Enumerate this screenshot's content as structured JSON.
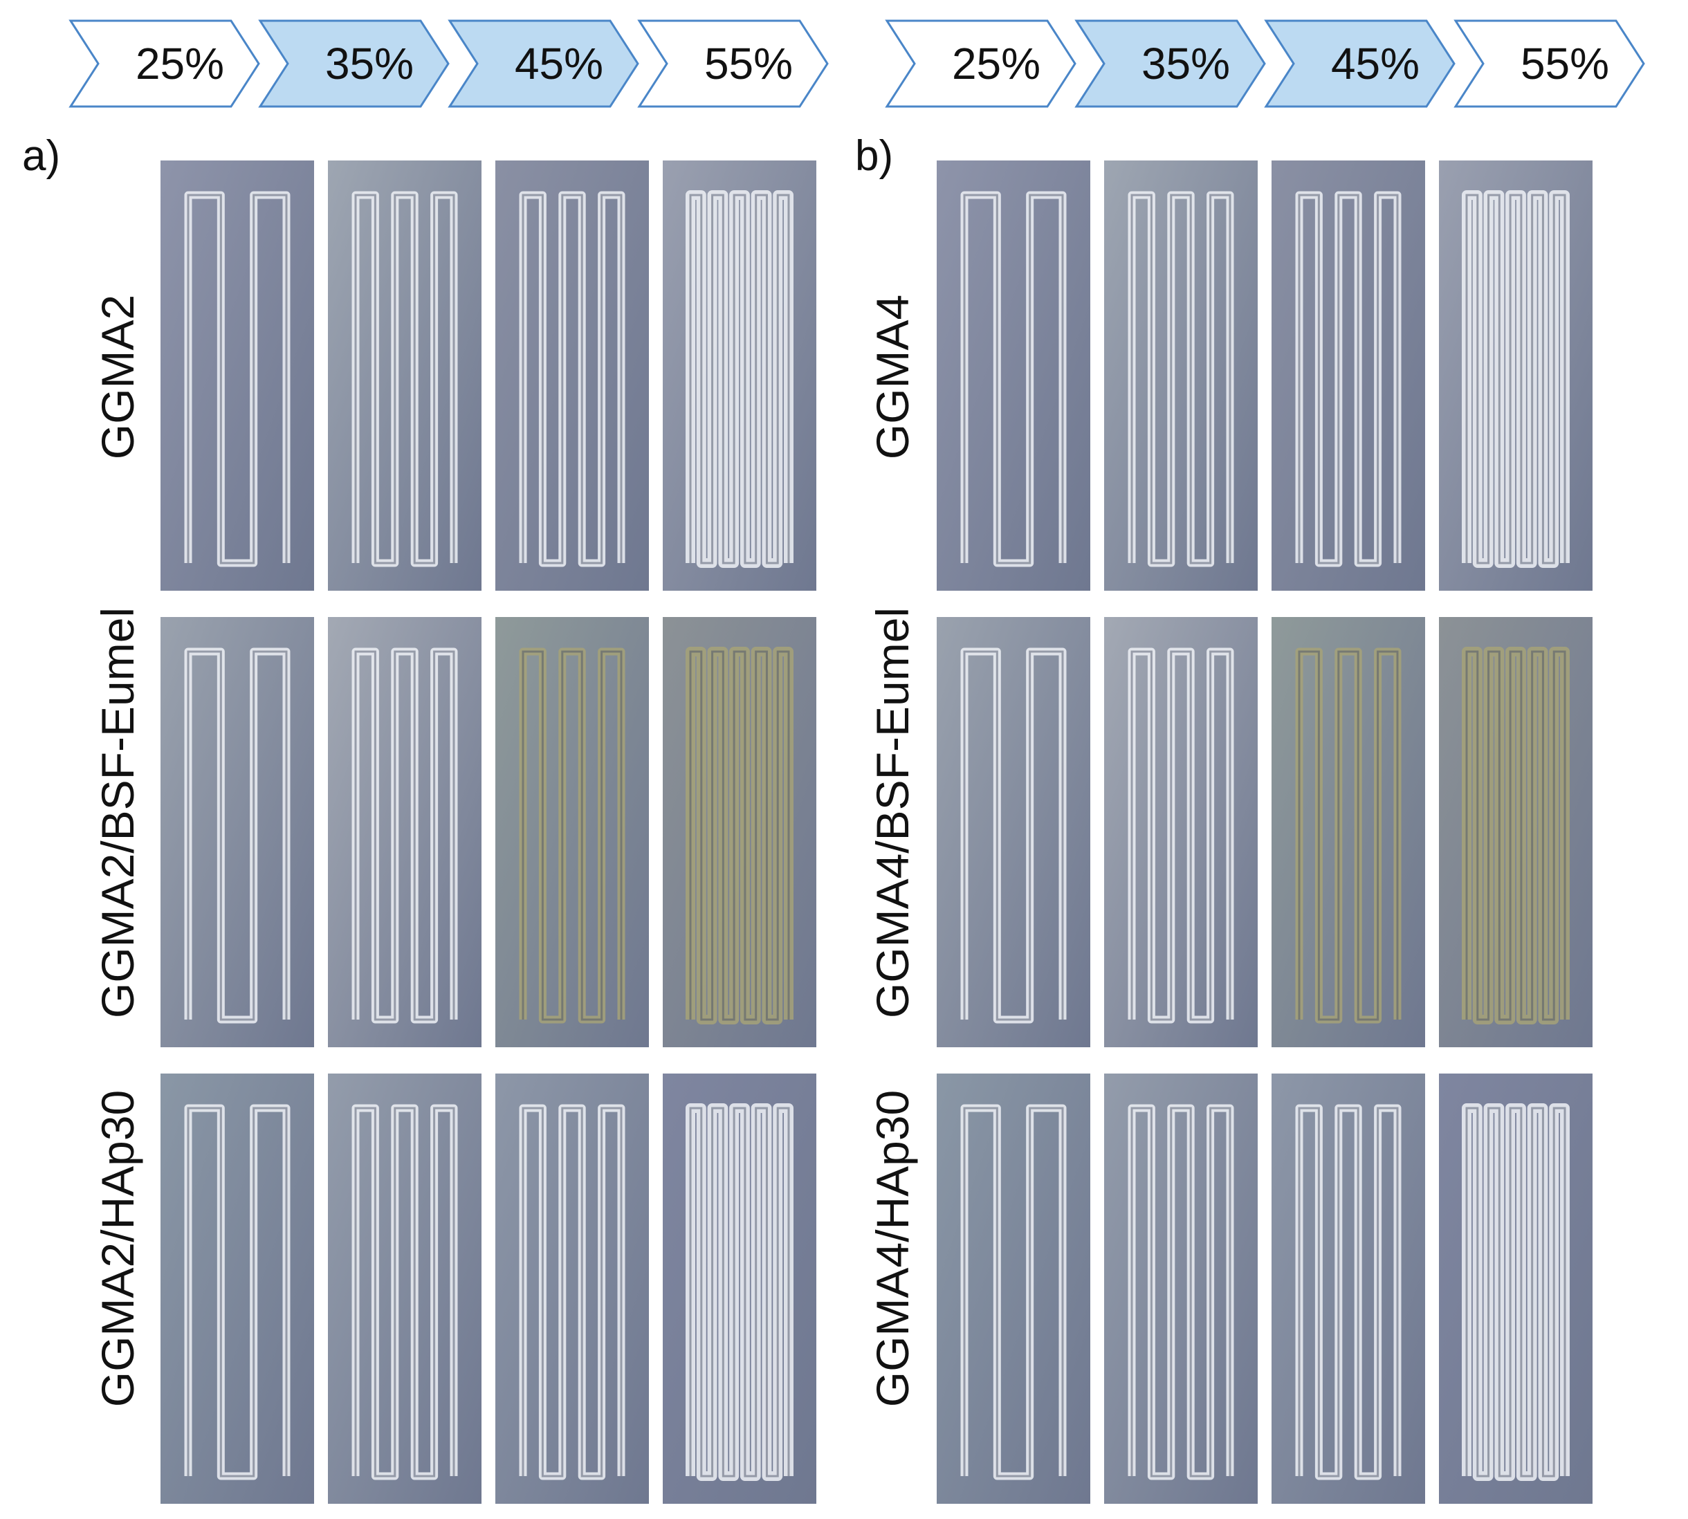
{
  "panels": [
    {
      "letter": "a)",
      "steps": [
        "25%",
        "35%",
        "45%",
        "55%"
      ],
      "rows": [
        "GGMA2",
        "GGMA2/BSF-Eumel",
        "GGMA2/HAp30"
      ]
    },
    {
      "letter": "b)",
      "steps": [
        "25%",
        "35%",
        "45%",
        "55%"
      ],
      "rows": [
        "GGMA4",
        "GGMA4/BSF-Eumel",
        "GGMA4/HAp30"
      ]
    }
  ],
  "colors": {
    "chevron_stroke": "#4a86c8",
    "chevron_fill_highlight": "#bcdaf2",
    "chevron_fill_plain": "#ffffff",
    "photo_background": "#8f96aa",
    "strand": "#eef1f6",
    "eumelanin_tint": "#a6a278"
  }
}
